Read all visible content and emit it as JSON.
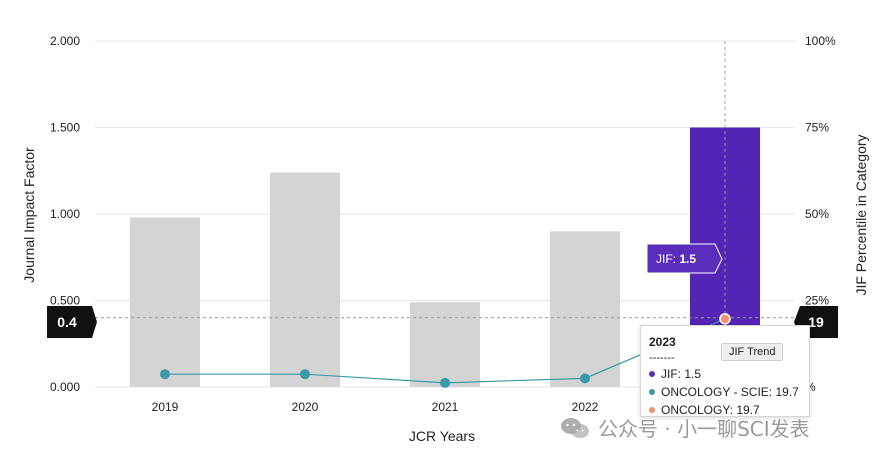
{
  "chart_data": {
    "type": "bar",
    "categories": [
      "2019",
      "2020",
      "2021",
      "2022",
      "2023"
    ],
    "series": [
      {
        "name": "JIF",
        "values": [
          0.98,
          1.24,
          0.49,
          0.9,
          1.5
        ]
      },
      {
        "name": "JIF Trend",
        "values": [
          3.7,
          3.7,
          1.2,
          2.5,
          19.7
        ]
      }
    ],
    "xlabel": "JCR Years",
    "ylabel": "Journal Impact Factor",
    "y2label": "JIF Percentile in Category",
    "ylim": [
      0,
      2
    ],
    "y2lim": [
      0,
      100
    ],
    "yticks": [
      "0.000",
      "0.500",
      "1.000",
      "1.500",
      "2.000"
    ],
    "y2ticks": [
      "%",
      "25%",
      "50%",
      "75%",
      "100%"
    ],
    "left_marker": "0.4",
    "right_marker": "19",
    "highlight_category": "2023",
    "bar_label": "JIF: ",
    "bar_label_value": "1.5"
  },
  "tooltip": {
    "year": "2023",
    "separator": "-------",
    "rows": [
      {
        "label": "JIF: 1.5",
        "color": "#5b2dbd"
      },
      {
        "label": "ONCOLOGY - SCIE: 19.7",
        "color": "#3a9aa8"
      },
      {
        "label": "ONCOLOGY: 19.7",
        "color": "#f0936a"
      }
    ],
    "chip": "JIF Trend"
  },
  "watermark": {
    "text": "公众号 · 小一聊SCI发表"
  },
  "colors": {
    "bar": "#d4d4d4",
    "bar_highlight": "#5424b4",
    "line": "#3a9aa8",
    "grid": "#e6e6e6",
    "marker_bg": "#111111",
    "label_bg": "#5b2dbd"
  }
}
